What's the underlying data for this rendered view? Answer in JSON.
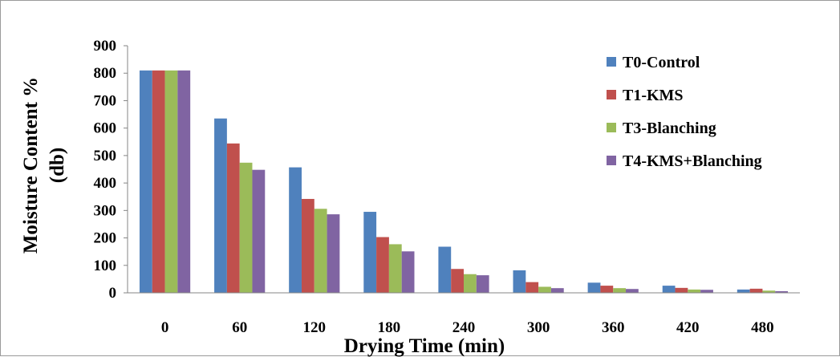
{
  "chart_data": {
    "type": "bar",
    "title": "",
    "xlabel": "Drying Time (min)",
    "ylabel_lines": [
      "Moisture Content %",
      "(db)"
    ],
    "categories": [
      "0",
      "60",
      "120",
      "180",
      "240",
      "300",
      "360",
      "420",
      "480"
    ],
    "ylim": [
      0,
      900
    ],
    "yticks": [
      0,
      100,
      200,
      300,
      400,
      500,
      600,
      700,
      800,
      900
    ],
    "grid": false,
    "legend_position": "top-right",
    "series": [
      {
        "name": "T0-Control",
        "color": "#4F81BD",
        "values": [
          810,
          635,
          457,
          295,
          168,
          82,
          37,
          26,
          12
        ]
      },
      {
        "name": "T1-KMS",
        "color": "#C0504D",
        "values": [
          810,
          544,
          342,
          203,
          87,
          39,
          26,
          18,
          15
        ]
      },
      {
        "name": "T3-Blanching",
        "color": "#9BBB59",
        "values": [
          810,
          474,
          306,
          177,
          68,
          22,
          17,
          12,
          8
        ]
      },
      {
        "name": "T4-KMS+Blanching",
        "color": "#8064A2",
        "values": [
          810,
          448,
          286,
          151,
          64,
          17,
          14,
          11,
          6
        ]
      }
    ]
  }
}
